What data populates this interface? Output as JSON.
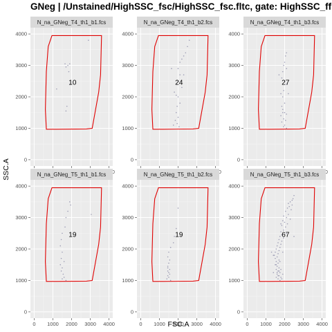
{
  "chart_data": {
    "type": "scatter",
    "title": "GNeg  |  /Unstained/HighSSC_fsc/HighSSC_fsc.fltc, gate: HighSSC_ffl",
    "xlabel": "FSC.A",
    "ylabel": "SSC.A",
    "xlim": [
      -200,
      4200
    ],
    "ylim": [
      -200,
      4200
    ],
    "x_ticks": [
      0,
      1000,
      2000,
      3000,
      4000
    ],
    "y_ticks": [
      0,
      1000,
      2000,
      3000,
      4000
    ],
    "x_tick_labels": [
      "0",
      "1000",
      "2000",
      "3000",
      "4000"
    ],
    "y_tick_labels": [
      "0",
      "1000",
      "2000",
      "3000",
      "4000"
    ],
    "grid": true,
    "gate_color": "#e00000",
    "point_color": "#8a8aa8",
    "panel_bg": "#ebebeb",
    "strip_bg": "#d9d9d9",
    "gate": [
      [
        950,
        3950
      ],
      [
        1950,
        3950
      ],
      [
        3450,
        3950
      ],
      [
        3600,
        3950
      ],
      [
        3550,
        2700
      ],
      [
        3450,
        2150
      ],
      [
        3100,
        1000
      ],
      [
        2800,
        980
      ],
      [
        1200,
        970
      ],
      [
        650,
        970
      ],
      [
        600,
        1600
      ],
      [
        650,
        2800
      ],
      [
        750,
        3600
      ],
      [
        950,
        3950
      ]
    ],
    "panels": [
      {
        "name": "N_na_GNeg_T4_th1_b1.fcs",
        "count": "10",
        "points": [
          [
            1650,
            3050
          ],
          [
            1800,
            3000
          ],
          [
            1700,
            2950
          ],
          [
            1900,
            3050
          ],
          [
            2900,
            3800
          ],
          [
            1200,
            2250
          ],
          [
            1750,
            1700
          ],
          [
            1700,
            1550
          ],
          [
            1900,
            2400
          ],
          [
            1850,
            2800
          ]
        ]
      },
      {
        "name": "N_na_GNeg_T4_th1_b2.fcs",
        "count": "24",
        "points": [
          [
            2600,
            3800
          ],
          [
            2500,
            3600
          ],
          [
            2400,
            3400
          ],
          [
            2300,
            3300
          ],
          [
            2200,
            3200
          ],
          [
            2100,
            3100
          ],
          [
            2000,
            2900
          ],
          [
            2100,
            2700
          ],
          [
            2000,
            2500
          ],
          [
            1900,
            2400
          ],
          [
            2200,
            2300
          ],
          [
            1800,
            2150
          ],
          [
            1900,
            2050
          ],
          [
            2000,
            2000
          ],
          [
            2100,
            1800
          ],
          [
            1900,
            1500
          ],
          [
            2000,
            1350
          ],
          [
            1850,
            1250
          ],
          [
            1950,
            1150
          ],
          [
            2050,
            1050
          ],
          [
            1750,
            1100
          ],
          [
            2300,
            2700
          ],
          [
            1650,
            2900
          ],
          [
            1950,
            1700
          ]
        ]
      },
      {
        "name": "N_na_GNeg_T4_th1_b3.fcs",
        "count": "27",
        "points": [
          [
            2100,
            3400
          ],
          [
            2050,
            3300
          ],
          [
            2000,
            3100
          ],
          [
            1950,
            3000
          ],
          [
            2100,
            2900
          ],
          [
            1900,
            2800
          ],
          [
            1850,
            2600
          ],
          [
            2000,
            2500
          ],
          [
            2100,
            2400
          ],
          [
            1950,
            2200
          ],
          [
            1800,
            2100
          ],
          [
            1900,
            2000
          ],
          [
            2000,
            1800
          ],
          [
            1850,
            1700
          ],
          [
            1900,
            1600
          ],
          [
            2000,
            1500
          ],
          [
            2100,
            1450
          ],
          [
            1800,
            1400
          ],
          [
            1950,
            1300
          ],
          [
            2050,
            1250
          ],
          [
            1850,
            1200
          ],
          [
            2000,
            1100
          ],
          [
            1950,
            1050
          ],
          [
            2100,
            1000
          ],
          [
            1900,
            1500
          ],
          [
            2200,
            2100
          ],
          [
            1700,
            2700
          ]
        ]
      },
      {
        "name": "N_na_GNeg_T5_th1_b1.fcs",
        "count": "19",
        "points": [
          [
            1900,
            3500
          ],
          [
            1950,
            3400
          ],
          [
            1800,
            3200
          ],
          [
            1700,
            3000
          ],
          [
            1650,
            2700
          ],
          [
            1500,
            2500
          ],
          [
            1450,
            2300
          ],
          [
            1400,
            2100
          ],
          [
            1500,
            1900
          ],
          [
            1450,
            1700
          ],
          [
            1600,
            1600
          ],
          [
            1500,
            1400
          ],
          [
            1450,
            1300
          ],
          [
            1550,
            1200
          ],
          [
            1600,
            1100
          ],
          [
            1500,
            1050
          ],
          [
            1700,
            1000
          ],
          [
            1400,
            1500
          ],
          [
            3050,
            3100
          ]
        ]
      },
      {
        "name": "N_na_GNeg_T5_th1_b2.fcs",
        "count": "19",
        "points": [
          [
            2000,
            3300
          ],
          [
            1900,
            2650
          ],
          [
            1800,
            2400
          ],
          [
            1750,
            2200
          ],
          [
            1600,
            2050
          ],
          [
            1500,
            1900
          ],
          [
            1450,
            1750
          ],
          [
            1550,
            1650
          ],
          [
            1500,
            1550
          ],
          [
            1450,
            1450
          ],
          [
            1550,
            1350
          ],
          [
            1450,
            1300
          ],
          [
            1500,
            1250
          ],
          [
            1550,
            1200
          ],
          [
            1450,
            1150
          ],
          [
            1500,
            1100
          ],
          [
            1400,
            1050
          ],
          [
            1600,
            1000
          ],
          [
            1450,
            1400
          ]
        ]
      },
      {
        "name": "N_na_GNeg_T5_th1_b3.fcs",
        "count": "67",
        "points": [
          [
            2500,
            3700
          ],
          [
            2450,
            3600
          ],
          [
            2400,
            3550
          ],
          [
            2300,
            3500
          ],
          [
            2200,
            3450
          ],
          [
            2400,
            3400
          ],
          [
            2250,
            3350
          ],
          [
            2150,
            3300
          ],
          [
            2350,
            3250
          ],
          [
            2050,
            3200
          ],
          [
            2200,
            3100
          ],
          [
            1950,
            3050
          ],
          [
            2100,
            3000
          ],
          [
            2300,
            2950
          ],
          [
            1900,
            2900
          ],
          [
            2000,
            2850
          ],
          [
            2150,
            2800
          ],
          [
            1850,
            2750
          ],
          [
            2050,
            2700
          ],
          [
            1950,
            2600
          ],
          [
            1800,
            2550
          ],
          [
            2100,
            2500
          ],
          [
            1850,
            2450
          ],
          [
            1750,
            2400
          ],
          [
            1950,
            2350
          ],
          [
            1700,
            2300
          ],
          [
            1850,
            2250
          ],
          [
            1650,
            2200
          ],
          [
            1800,
            2150
          ],
          [
            1600,
            2100
          ],
          [
            1750,
            2050
          ],
          [
            1550,
            2000
          ],
          [
            1700,
            1950
          ],
          [
            1500,
            1900
          ],
          [
            1650,
            1850
          ],
          [
            1450,
            1800
          ],
          [
            1600,
            1750
          ],
          [
            1500,
            1700
          ],
          [
            1700,
            1650
          ],
          [
            1550,
            1600
          ],
          [
            1650,
            1550
          ],
          [
            1500,
            1500
          ],
          [
            1600,
            1450
          ],
          [
            1700,
            1400
          ],
          [
            1550,
            1350
          ],
          [
            1650,
            1300
          ],
          [
            1750,
            1250
          ],
          [
            1600,
            1200
          ],
          [
            1700,
            1150
          ],
          [
            1800,
            1100
          ],
          [
            1650,
            1050
          ],
          [
            1750,
            1000
          ],
          [
            1850,
            1050
          ],
          [
            1550,
            1100
          ],
          [
            1700,
            1300
          ],
          [
            1800,
            1350
          ],
          [
            1900,
            1200
          ],
          [
            1600,
            1250
          ],
          [
            1650,
            1150
          ],
          [
            1550,
            1500
          ],
          [
            1750,
            1600
          ],
          [
            1900,
            1900
          ],
          [
            1400,
            1800
          ],
          [
            1300,
            1900
          ],
          [
            1800,
            2800
          ],
          [
            2500,
            2400
          ],
          [
            1400,
            1250
          ]
        ]
      }
    ]
  }
}
